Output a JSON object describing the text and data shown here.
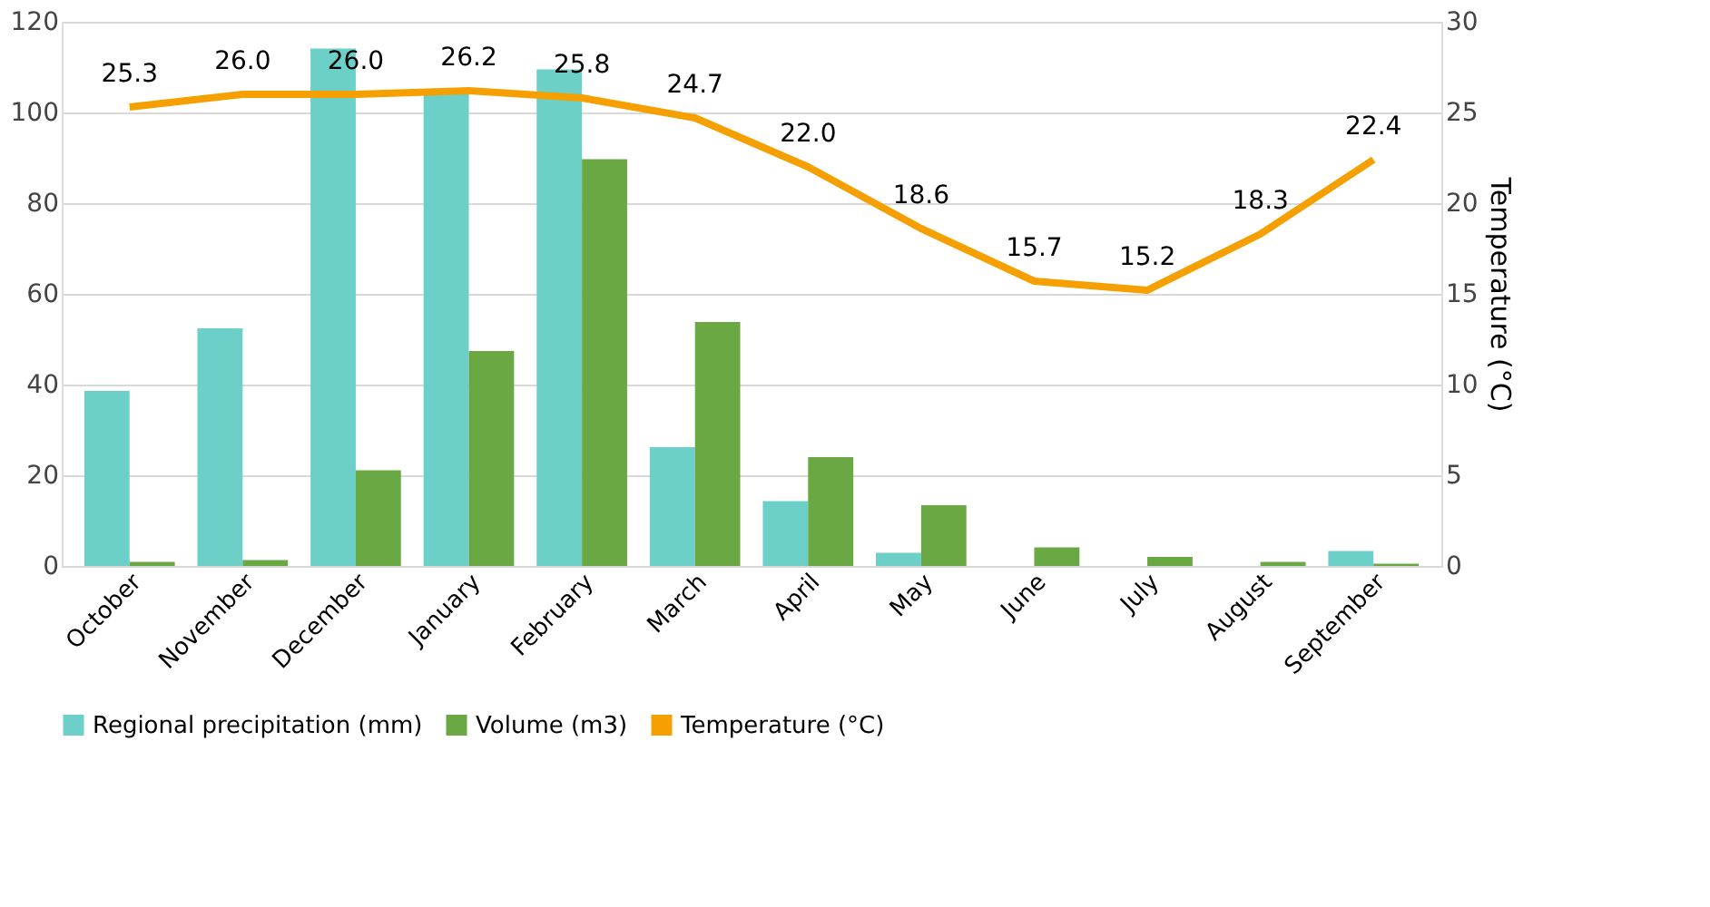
{
  "chart_data": {
    "type": "bar",
    "categories": [
      "October",
      "November",
      "December",
      "January",
      "February",
      "March",
      "April",
      "May",
      "June",
      "July",
      "August",
      "September"
    ],
    "series": [
      {
        "name": "Regional precipitation (mm)",
        "color": "#6ccfc8",
        "values": [
          38.6,
          52.4,
          114.1,
          105,
          109.5,
          26.2,
          14.3,
          2.9,
          0,
          0,
          0,
          3.3
        ]
      },
      {
        "name": "Volume (m3)",
        "color": "#6aa843",
        "values": [
          0.9,
          1.3,
          21.1,
          47.4,
          89.7,
          53.8,
          24.0,
          13.4,
          4.1,
          2.0,
          0.9,
          0.5
        ]
      },
      {
        "name": "Temperature (°C)",
        "color": "#f5a000",
        "type": "line",
        "axis": "y2",
        "value_labels": [
          "25.3",
          "26.0",
          "26.0",
          "26.2",
          "25.8",
          "24.7",
          "22.0",
          "18.6",
          "15.7",
          "15.2",
          "18.3",
          "22.4"
        ],
        "values": [
          25.3,
          26.0,
          26.0,
          26.2,
          25.8,
          24.7,
          22.0,
          18.6,
          15.7,
          15.2,
          18.3,
          22.4
        ]
      }
    ],
    "ylim": [
      0,
      120
    ],
    "yticks": [
      0,
      20,
      40,
      60,
      80,
      100,
      120
    ],
    "y2lim": [
      0,
      30
    ],
    "y2ticks": [
      0,
      5,
      10,
      15,
      20,
      25,
      30
    ],
    "y2label": "Temperature (°C)",
    "grid": "y",
    "legend": "bottom",
    "marker": "none"
  }
}
